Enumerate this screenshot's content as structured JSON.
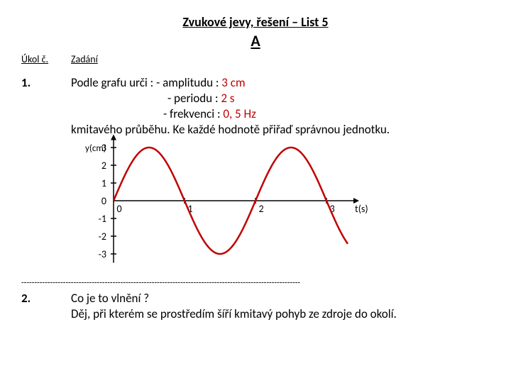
{
  "title": "Zvukové jevy, řešení – List 5",
  "letter": "A",
  "header": {
    "col1": "Úkol č.",
    "col2": "Zadání"
  },
  "task1": {
    "num": "1.",
    "line1a": "Podle grafu urči : - amplitudu : ",
    "ans1": "3 cm",
    "line2a": "- periodu : ",
    "ans2": "2 s",
    "line3a": "-  frekvenci : ",
    "ans3": "0, 5 Hz",
    "line4": "kmitavého průběhu. Ke každé hodnotě přiřaď správnou jednotku."
  },
  "chart": {
    "ylabel": "y(cm)",
    "xlabel": "t(s)",
    "yticks": [
      "3",
      "2",
      "1",
      "0",
      "-1",
      "-2",
      "-3"
    ],
    "xticks": [
      "0",
      "1",
      "2",
      "3"
    ],
    "axis_color": "#000000",
    "curve_color": "#c00000",
    "curve_width": 2.5,
    "amplitude_units": 3,
    "period_units": 2,
    "x_range": [
      0,
      3.3
    ]
  },
  "task2": {
    "num": "2.",
    "q": "Co je to vlnění ?",
    "a": "Děj, při kterém se prostředím šíří kmitavý pohyb ze zdroje do okolí."
  }
}
